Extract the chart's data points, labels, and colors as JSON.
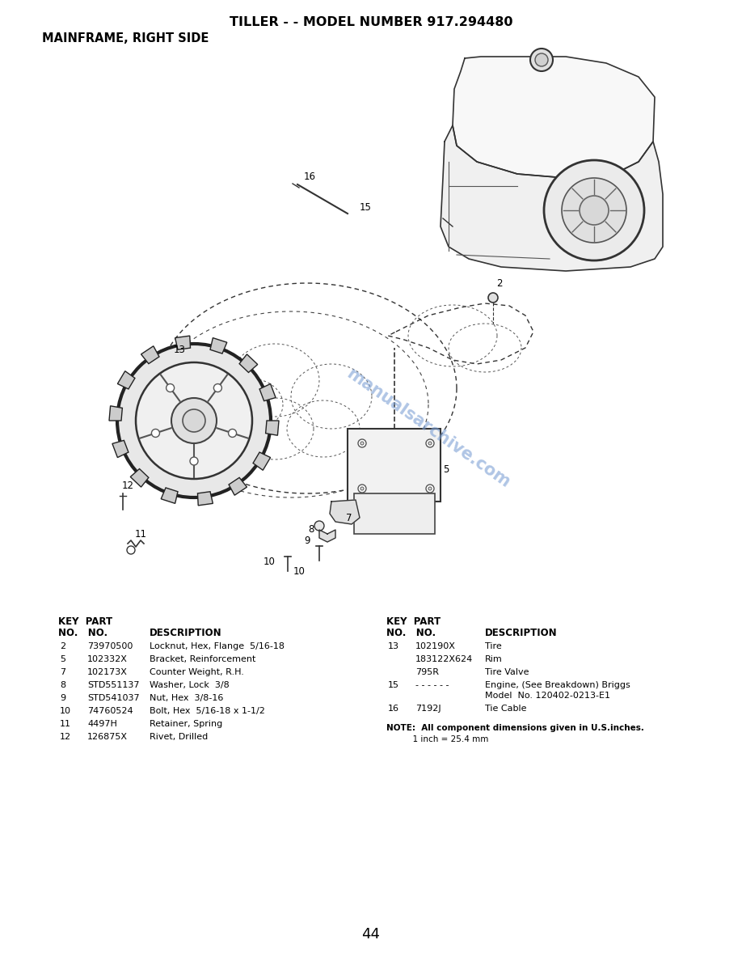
{
  "title_line1": "TILLER - - MODEL NUMBER 917.294480",
  "title_line2": "MAINFRAME, RIGHT SIDE",
  "page_number": "44",
  "background_color": "#ffffff",
  "watermark_text": "manualsarchive.com",
  "watermark_color": "#7b9fd4",
  "left_table": {
    "rows": [
      [
        "2",
        "73970500",
        "Locknut, Hex, Flange  5/16-18"
      ],
      [
        "5",
        "102332X",
        "Bracket, Reinforcement"
      ],
      [
        "7",
        "102173X",
        "Counter Weight, R.H."
      ],
      [
        "8",
        "STD551137",
        "Washer, Lock  3/8"
      ],
      [
        "9",
        "STD541037",
        "Nut, Hex  3/8-16"
      ],
      [
        "10",
        "74760524",
        "Bolt, Hex  5/16-18 x 1-1/2"
      ],
      [
        "11",
        "4497H",
        "Retainer, Spring"
      ],
      [
        "12",
        "126875X",
        "Rivet, Drilled"
      ]
    ]
  },
  "right_table": {
    "rows": [
      [
        "13",
        "102190X",
        "Tire"
      ],
      [
        "",
        "183122X624",
        "Rim"
      ],
      [
        "",
        "795R",
        "Tire Valve"
      ],
      [
        "15",
        "- - - - - -",
        "Engine, (See Breakdown) Briggs\nModel  No. 120402-0213-E1"
      ],
      [
        "16",
        "7192J",
        "Tie Cable"
      ]
    ]
  },
  "note_line1": "NOTE:  All component dimensions given in U.S.inches.",
  "note_line2": "          1 inch = 25.4 mm"
}
